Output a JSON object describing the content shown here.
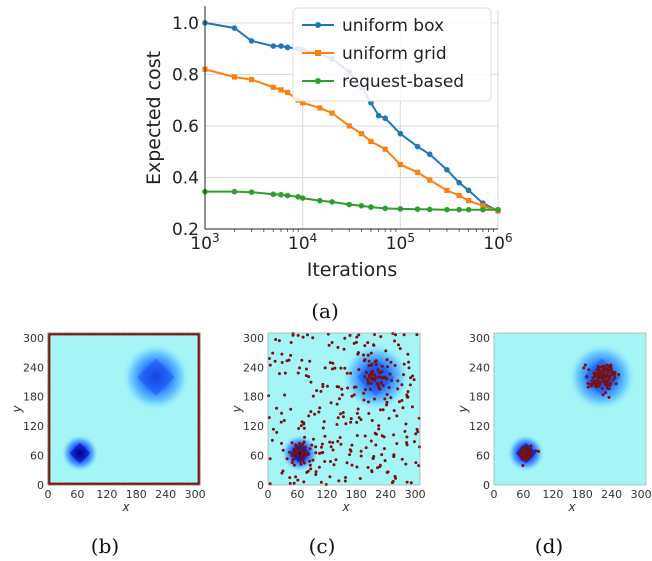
{
  "chart_data": [
    {
      "type": "line",
      "xscale": "log",
      "xlim": [
        1000,
        1000000
      ],
      "ylim": [
        0.2,
        1.05
      ],
      "xlabel": "Iterations",
      "ylabel": "Expected cost",
      "xticks": [
        "10^3",
        "10^4",
        "10^5",
        "10^6"
      ],
      "yticks": [
        "0.2",
        "0.4",
        "0.6",
        "0.8",
        "1.0"
      ],
      "grid": true,
      "legend": "top-right",
      "series": [
        {
          "name": "uniform box",
          "color": "#1f77b4",
          "marker": "circle",
          "x": [
            1000,
            2000,
            3000,
            5000,
            6000,
            7000,
            9000,
            10000,
            15000,
            20000,
            30000,
            40000,
            50000,
            60000,
            70000,
            100000,
            150000,
            200000,
            300000,
            400000,
            500000,
            700000,
            1000000
          ],
          "y": [
            1.0,
            0.98,
            0.93,
            0.91,
            0.91,
            0.905,
            0.9,
            0.895,
            0.88,
            0.86,
            0.81,
            0.75,
            0.69,
            0.64,
            0.63,
            0.57,
            0.52,
            0.49,
            0.43,
            0.38,
            0.35,
            0.3,
            0.27
          ]
        },
        {
          "name": "uniform grid",
          "color": "#ff7f0e",
          "marker": "square",
          "x": [
            1000,
            2000,
            3000,
            5000,
            6000,
            7000,
            9000,
            10000,
            15000,
            20000,
            30000,
            40000,
            50000,
            70000,
            100000,
            150000,
            200000,
            300000,
            400000,
            500000,
            700000,
            1000000
          ],
          "y": [
            0.82,
            0.79,
            0.78,
            0.75,
            0.74,
            0.73,
            0.7,
            0.69,
            0.67,
            0.65,
            0.6,
            0.57,
            0.54,
            0.51,
            0.45,
            0.42,
            0.39,
            0.35,
            0.33,
            0.31,
            0.29,
            0.27
          ]
        },
        {
          "name": "request-based",
          "color": "#2ca02c",
          "marker": "circle",
          "x": [
            1000,
            2000,
            3000,
            5000,
            6000,
            7000,
            9000,
            10000,
            15000,
            20000,
            30000,
            40000,
            50000,
            70000,
            100000,
            150000,
            200000,
            300000,
            400000,
            500000,
            700000,
            1000000
          ],
          "y": [
            0.345,
            0.345,
            0.343,
            0.335,
            0.333,
            0.33,
            0.325,
            0.32,
            0.31,
            0.305,
            0.295,
            0.29,
            0.285,
            0.28,
            0.278,
            0.277,
            0.276,
            0.275,
            0.275,
            0.275,
            0.275,
            0.275
          ]
        }
      ]
    },
    {
      "type": "heatmap",
      "panel": "(b)",
      "xlabel": "x",
      "ylabel": "y",
      "xlim": [
        0,
        310
      ],
      "ylim": [
        0,
        310
      ],
      "ticks": [
        "0",
        "60",
        "120",
        "180",
        "240",
        "300"
      ],
      "peaks": [
        {
          "x": 65,
          "y": 65,
          "size": "small"
        },
        {
          "x": 220,
          "y": 220,
          "size": "large"
        }
      ],
      "samples": "uniform grid (points along the border)"
    },
    {
      "type": "heatmap",
      "panel": "(c)",
      "xlabel": "x",
      "ylabel": "y",
      "xlim": [
        0,
        310
      ],
      "ylim": [
        0,
        310
      ],
      "ticks": [
        "0",
        "60",
        "120",
        "180",
        "240",
        "300"
      ],
      "peaks": [
        {
          "x": 65,
          "y": 65,
          "size": "small"
        },
        {
          "x": 220,
          "y": 220,
          "size": "large"
        }
      ],
      "samples": "uniform box (scattered random points)"
    },
    {
      "type": "heatmap",
      "panel": "(d)",
      "xlabel": "x",
      "ylabel": "y",
      "xlim": [
        0,
        310
      ],
      "ylim": [
        0,
        310
      ],
      "ticks": [
        "0",
        "60",
        "120",
        "180",
        "240",
        "300"
      ],
      "peaks": [
        {
          "x": 65,
          "y": 65,
          "size": "small"
        },
        {
          "x": 220,
          "y": 220,
          "size": "large"
        }
      ],
      "samples": "request-based (points clustered at peaks)"
    }
  ],
  "captions": {
    "a": "(a)",
    "b": "(b)",
    "c": "(c)",
    "d": "(d)"
  },
  "colors": {
    "background_field": "#a6f5f5",
    "peak": "#1a2ad8",
    "sample": "#7a1010",
    "grid": "#d9d9d9"
  }
}
